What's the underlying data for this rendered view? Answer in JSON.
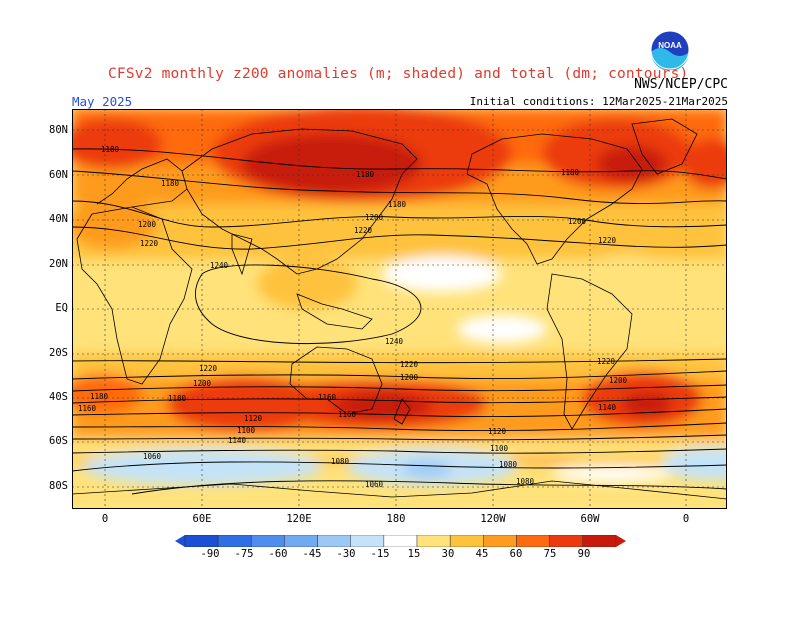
{
  "header": {
    "title": "CFSv2 monthly z200 anomalies (m; shaded) and total (dm; contours)",
    "agency": "NWS/NCEP/CPC",
    "month": "May 2025",
    "initial_conditions": "Initial conditions: 12Mar2025-21Mar2025",
    "logo_text": "NOAA"
  },
  "axes": {
    "lat_labels": [
      "80N",
      "60N",
      "40N",
      "20N",
      "EQ",
      "20S",
      "40S",
      "60S",
      "80S"
    ],
    "lon_labels": [
      "0",
      "60E",
      "120E",
      "180",
      "120W",
      "60W",
      "0"
    ]
  },
  "colorbar": {
    "labels": [
      "-90",
      "-75",
      "-60",
      "-45",
      "-30",
      "-15",
      "15",
      "30",
      "45",
      "60",
      "75",
      "90"
    ],
    "colors": {
      "n90": "#1a4fd6",
      "n75": "#2f6fe6",
      "n60": "#4f8ef0",
      "n45": "#72aaf2",
      "n30": "#9cc8f6",
      "n15": "#c4e3f8",
      "zero": "#ffffff",
      "p15": "#ffe27a",
      "p30": "#ffc23c",
      "p45": "#ff9b1e",
      "p60": "#ff6a10",
      "p75": "#ec3a10",
      "p90": "#c81a0a"
    }
  },
  "contour_labels": [
    "1180",
    "1180",
    "1180",
    "1180",
    "1180",
    "1200",
    "1200",
    "1220",
    "1200",
    "1220",
    "1220",
    "1240",
    "1240",
    "1220",
    "1220",
    "1200",
    "1200",
    "1180",
    "1160",
    "1220",
    "1200",
    "1180",
    "1160",
    "1160",
    "1140",
    "1120",
    "1100",
    "1140",
    "1120",
    "1100",
    "1080",
    "1060",
    "1080",
    "1060",
    "1080"
  ]
}
